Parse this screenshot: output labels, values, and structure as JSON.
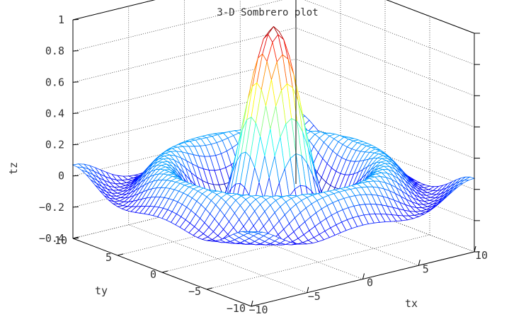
{
  "chart_data": {
    "type": "surface",
    "title": "3-D Sombrero plot",
    "xlabel": "tx",
    "ylabel": "ty",
    "zlabel": "tz",
    "function": "z = sin(sqrt(x^2+y^2)) / sqrt(x^2+y^2)",
    "x_range": [
      -10,
      10
    ],
    "y_range": [
      -10,
      10
    ],
    "zlim": [
      -0.4,
      1
    ],
    "mesh_points": 41,
    "grid": true,
    "colormap": "jet",
    "x_ticks": [
      -10,
      -5,
      0,
      5,
      10
    ],
    "y_ticks": [
      -10,
      -5,
      0,
      5,
      10
    ],
    "z_ticks": [
      -0.4,
      -0.2,
      0,
      0.2,
      0.4,
      0.6,
      0.8,
      1
    ],
    "x_tick_labels": [
      "−10",
      "−5",
      "0",
      "5",
      "10"
    ],
    "y_tick_labels": [
      "−10",
      "−5",
      "0",
      "5",
      "10"
    ],
    "z_tick_labels": [
      "−0.4",
      "−0.2",
      "0",
      "0.2",
      "0.4",
      "0.6",
      "0.8",
      "1"
    ]
  }
}
